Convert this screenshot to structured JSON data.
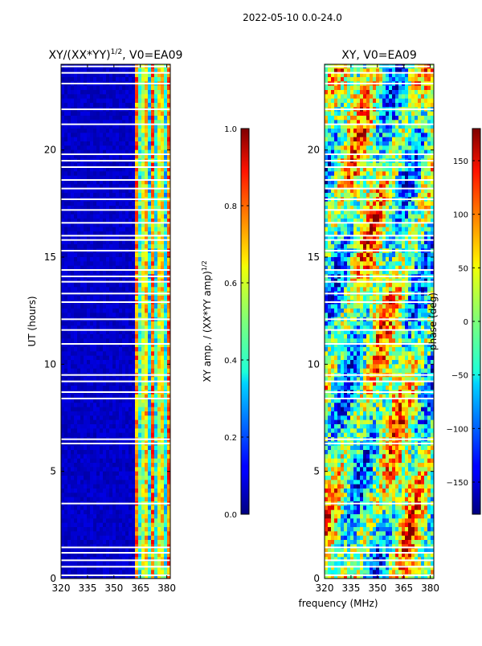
{
  "figure": {
    "suptitle": "2022-05-10 0.0-24.0",
    "shared_xlabel": "frequency (MHz)"
  },
  "chart_data": [
    {
      "type": "heatmap",
      "title": "XY/(XX*YY)",
      "title_exponent": "1/2",
      "title_suffix": ", V0=EA09",
      "xlabel": "frequency (MHz)",
      "ylabel": "UT (hours)",
      "xlim": [
        320,
        382
      ],
      "ylim": [
        0,
        24
      ],
      "xticks": [
        320,
        335,
        350,
        365,
        380
      ],
      "yticks": [
        0,
        5,
        10,
        15,
        20
      ],
      "flagged_time_hours": [
        0.15,
        0.55,
        0.85,
        1.2,
        1.45,
        3.5,
        6.3,
        6.5,
        8.4,
        8.7,
        9.2,
        9.5,
        10.95,
        11.6,
        12.1,
        12.9,
        13.3,
        13.85,
        14.1,
        14.4,
        15.3,
        15.8,
        16.0,
        16.6,
        17.2,
        17.7,
        18.2,
        18.6,
        19.2,
        19.5,
        19.8,
        21.2,
        21.9,
        23.1,
        23.6,
        23.9
      ],
      "colorbar": {
        "label": "XY amp. / (XX*YY amp)",
        "label_exponent": "1/2",
        "min": 0.0,
        "max": 1.0,
        "ticks": [
          "0.0",
          "0.2",
          "0.4",
          "0.6",
          "0.8",
          "1.0"
        ],
        "colormap": "jet"
      }
    },
    {
      "type": "heatmap",
      "title": "XY, V0=EA09",
      "xlabel": "frequency (MHz)",
      "ylabel": "",
      "xlim": [
        320,
        382
      ],
      "ylim": [
        0,
        24
      ],
      "xticks": [
        320,
        335,
        350,
        365,
        380
      ],
      "yticks": [
        0,
        5,
        10,
        15,
        20
      ],
      "flagged_time_hours": [
        0.15,
        0.55,
        0.85,
        1.2,
        1.45,
        3.5,
        6.3,
        6.5,
        8.4,
        8.7,
        9.2,
        9.5,
        10.95,
        11.6,
        12.1,
        12.9,
        13.3,
        13.85,
        14.1,
        14.4,
        15.3,
        15.8,
        16.0,
        16.6,
        17.2,
        17.7,
        18.2,
        18.6,
        19.2,
        19.5,
        19.8,
        21.2,
        21.9,
        23.1,
        23.6,
        23.9
      ],
      "colorbar": {
        "label": "phase (deg)",
        "min": -180,
        "max": 180,
        "ticks": [
          "150",
          "100",
          "50",
          "0",
          "−50",
          "−100",
          "−150"
        ],
        "tick_values": [
          150,
          100,
          50,
          0,
          -50,
          -100,
          -150
        ],
        "colormap": "jet"
      }
    }
  ]
}
